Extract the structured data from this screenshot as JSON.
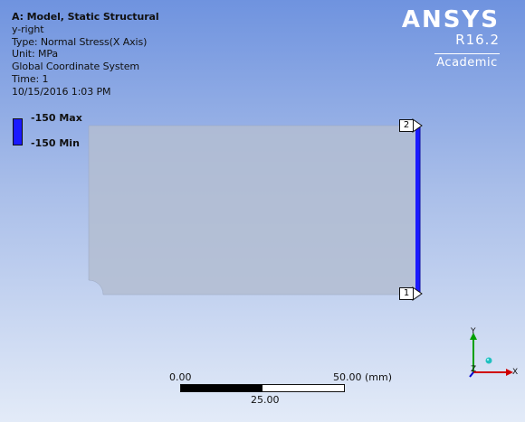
{
  "info": {
    "title": "A: Model, Static Structural",
    "lines": [
      "y-right",
      "Type: Normal Stress(X Axis)",
      "Unit: MPa",
      "Global Coordinate System",
      "Time: 1",
      "10/15/2016 1:03 PM"
    ]
  },
  "legend": {
    "max_label": "-150 Max",
    "min_label": "-150 Min",
    "color": "#1a1aff"
  },
  "logo": {
    "brand": "ANSYS",
    "version": "R16.2",
    "edition": "Academic"
  },
  "probes": {
    "top": "2",
    "bottom": "1"
  },
  "scale": {
    "left": "0.00",
    "right": "50.00 (mm)",
    "mid": "25.00"
  },
  "triad": {
    "y": "Y",
    "z": "Z",
    "x": "X"
  },
  "colors": {
    "background_top": "#6f93df",
    "background_bottom": "#e3ebf8",
    "model_fill": "#b3bdd1",
    "edge_highlight": "#1a1aff",
    "axis_y": "#00a000",
    "axis_x": "#d00000",
    "axis_z": "#0000d0"
  }
}
